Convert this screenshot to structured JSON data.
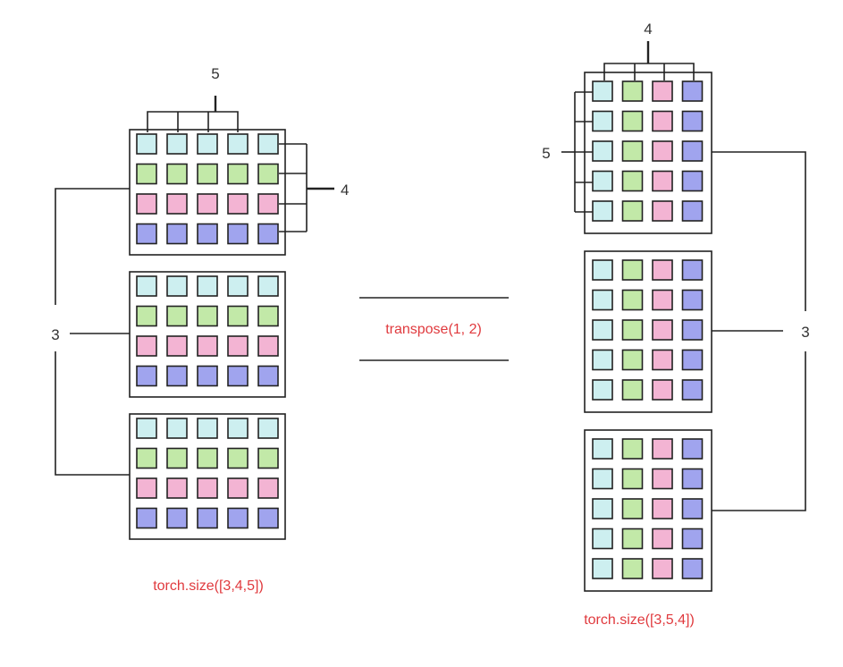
{
  "left": {
    "width_label": "5",
    "height_label": "4",
    "depth_label": "3",
    "caption": "torch.size([3,4,5])",
    "row_colors": [
      "#cdeff0",
      "#c2e9a8",
      "#f3b4d3",
      "#a0a4ee"
    ]
  },
  "operation": {
    "label": "transpose(1, 2)"
  },
  "right": {
    "width_label": "4",
    "height_label": "5",
    "depth_label": "3",
    "caption": "torch.size([3,5,4])",
    "column_colors": [
      "#cdeff0",
      "#c2e9a8",
      "#f3b4d3",
      "#a0a4ee"
    ]
  },
  "colors": {
    "stroke": "#222222",
    "label_red": "#e03a3e"
  }
}
